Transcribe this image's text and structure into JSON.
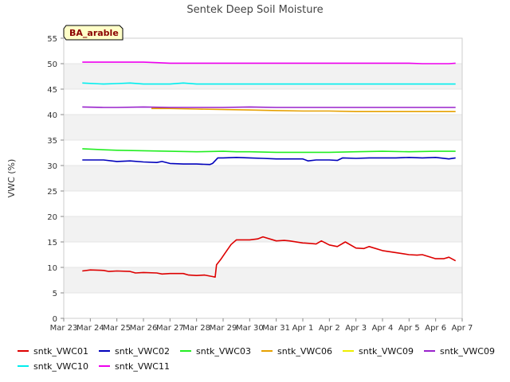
{
  "chart_data": {
    "type": "line",
    "title": "Sentek Deep Soil Moisture",
    "ylabel": "VWC (%)",
    "xlabel": "",
    "badge": "BA_arable",
    "ylim": [
      0,
      55
    ],
    "xlim": [
      0,
      15
    ],
    "yticks": [
      0,
      5,
      10,
      15,
      20,
      25,
      30,
      35,
      40,
      45,
      50,
      55
    ],
    "xtick_labels": [
      "Mar 23",
      "Mar 24",
      "Mar 25",
      "Mar 26",
      "Mar 27",
      "Mar 28",
      "Mar 29",
      "Mar 30",
      "Mar 31",
      "Apr 1",
      "Apr 2",
      "Apr 3",
      "Apr 4",
      "Apr 5",
      "Apr 6",
      "Apr 7"
    ],
    "grid": "horizontal bands",
    "legend_position": "bottom",
    "series": [
      {
        "name": "sntk_VWC01",
        "color": "#dd0000",
        "x": [
          0.7,
          1.0,
          1.5,
          1.7,
          2.0,
          2.5,
          2.7,
          3.0,
          3.5,
          3.7,
          4.0,
          4.5,
          4.7,
          5.0,
          5.3,
          5.5,
          5.6,
          5.7,
          5.75,
          5.9,
          6.1,
          6.3,
          6.5,
          7.0,
          7.3,
          7.5,
          8.0,
          8.3,
          8.5,
          9.0,
          9.3,
          9.5,
          9.7,
          10.0,
          10.3,
          10.6,
          11.0,
          11.3,
          11.5,
          12.0,
          12.5,
          13.0,
          13.3,
          13.5,
          14.0,
          14.3,
          14.5,
          14.75
        ],
        "y": [
          9.3,
          9.5,
          9.4,
          9.2,
          9.3,
          9.2,
          8.9,
          9.0,
          8.9,
          8.7,
          8.8,
          8.8,
          8.5,
          8.4,
          8.5,
          8.3,
          8.2,
          8.1,
          10.5,
          11.5,
          13.0,
          14.5,
          15.4,
          15.4,
          15.6,
          16.0,
          15.2,
          15.3,
          15.2,
          14.8,
          14.7,
          14.6,
          15.2,
          14.4,
          14.1,
          15.0,
          13.8,
          13.7,
          14.1,
          13.3,
          12.9,
          12.5,
          12.4,
          12.5,
          11.7,
          11.7,
          12.0,
          11.3
        ]
      },
      {
        "name": "sntk_VWC02",
        "color": "#0000bb",
        "x": [
          0.7,
          1.5,
          2.0,
          2.5,
          3.0,
          3.5,
          3.7,
          4.0,
          4.5,
          5.0,
          5.5,
          5.6,
          5.8,
          6.0,
          6.5,
          7.0,
          7.5,
          8.0,
          9.0,
          9.2,
          9.5,
          10.0,
          10.3,
          10.5,
          11.0,
          11.5,
          12.0,
          12.5,
          13.0,
          13.5,
          14.0,
          14.5,
          14.75
        ],
        "y": [
          31.1,
          31.1,
          30.8,
          30.9,
          30.7,
          30.6,
          30.8,
          30.4,
          30.3,
          30.3,
          30.2,
          30.4,
          31.5,
          31.5,
          31.6,
          31.5,
          31.4,
          31.3,
          31.3,
          30.9,
          31.1,
          31.1,
          31.0,
          31.5,
          31.4,
          31.5,
          31.5,
          31.5,
          31.6,
          31.5,
          31.6,
          31.3,
          31.5
        ]
      },
      {
        "name": "sntk_VWC03",
        "color": "#22ee22",
        "x": [
          0.7,
          1.5,
          2.0,
          3.0,
          4.0,
          5.0,
          6.0,
          6.5,
          7.0,
          8.0,
          9.0,
          10.0,
          11.0,
          12.0,
          13.0,
          14.0,
          14.75
        ],
        "y": [
          33.3,
          33.1,
          33.0,
          32.9,
          32.8,
          32.7,
          32.8,
          32.7,
          32.7,
          32.6,
          32.6,
          32.6,
          32.7,
          32.8,
          32.7,
          32.8,
          32.8
        ]
      },
      {
        "name": "sntk_VWC06",
        "color": "#e6a000",
        "x": [
          3.3,
          4.0,
          5.0,
          6.0,
          7.0,
          8.0,
          9.0,
          10.0,
          11.0,
          12.0,
          13.0,
          14.0,
          14.75
        ],
        "y": [
          41.2,
          41.2,
          41.1,
          41.0,
          40.9,
          40.8,
          40.7,
          40.7,
          40.6,
          40.6,
          40.6,
          40.6,
          40.6
        ]
      },
      {
        "name": "sntk_VWC09",
        "color": "#eeee00",
        "x": [],
        "y": []
      },
      {
        "name": "sntk_VWC09",
        "color": "#9922cc",
        "x": [
          0.7,
          1.5,
          2.0,
          3.0,
          4.0,
          5.0,
          6.0,
          7.0,
          8.0,
          9.0,
          10.0,
          11.0,
          12.0,
          13.0,
          14.0,
          14.75
        ],
        "y": [
          41.5,
          41.4,
          41.4,
          41.5,
          41.4,
          41.4,
          41.4,
          41.5,
          41.4,
          41.4,
          41.4,
          41.4,
          41.4,
          41.4,
          41.4,
          41.4
        ]
      },
      {
        "name": "sntk_VWC10",
        "color": "#00eeee",
        "x": [
          0.7,
          1.5,
          2.0,
          2.5,
          3.0,
          4.0,
          4.5,
          5.0,
          6.0,
          7.0,
          8.0,
          9.0,
          10.0,
          11.0,
          12.0,
          13.0,
          14.0,
          14.75
        ],
        "y": [
          46.2,
          46.0,
          46.1,
          46.2,
          46.0,
          46.0,
          46.2,
          46.0,
          46.0,
          46.0,
          46.0,
          46.0,
          46.0,
          46.0,
          46.0,
          46.0,
          46.0,
          46.0
        ]
      },
      {
        "name": "sntk_VWC11",
        "color": "#ee00ee",
        "x": [
          0.7,
          1.5,
          2.0,
          3.0,
          3.5,
          4.0,
          5.0,
          6.0,
          7.0,
          8.0,
          9.0,
          10.0,
          11.0,
          12.0,
          13.0,
          13.5,
          14.0,
          14.5,
          14.75
        ],
        "y": [
          50.3,
          50.3,
          50.3,
          50.3,
          50.2,
          50.1,
          50.1,
          50.1,
          50.1,
          50.1,
          50.1,
          50.1,
          50.1,
          50.1,
          50.1,
          50.0,
          50.0,
          50.0,
          50.1
        ]
      }
    ]
  }
}
